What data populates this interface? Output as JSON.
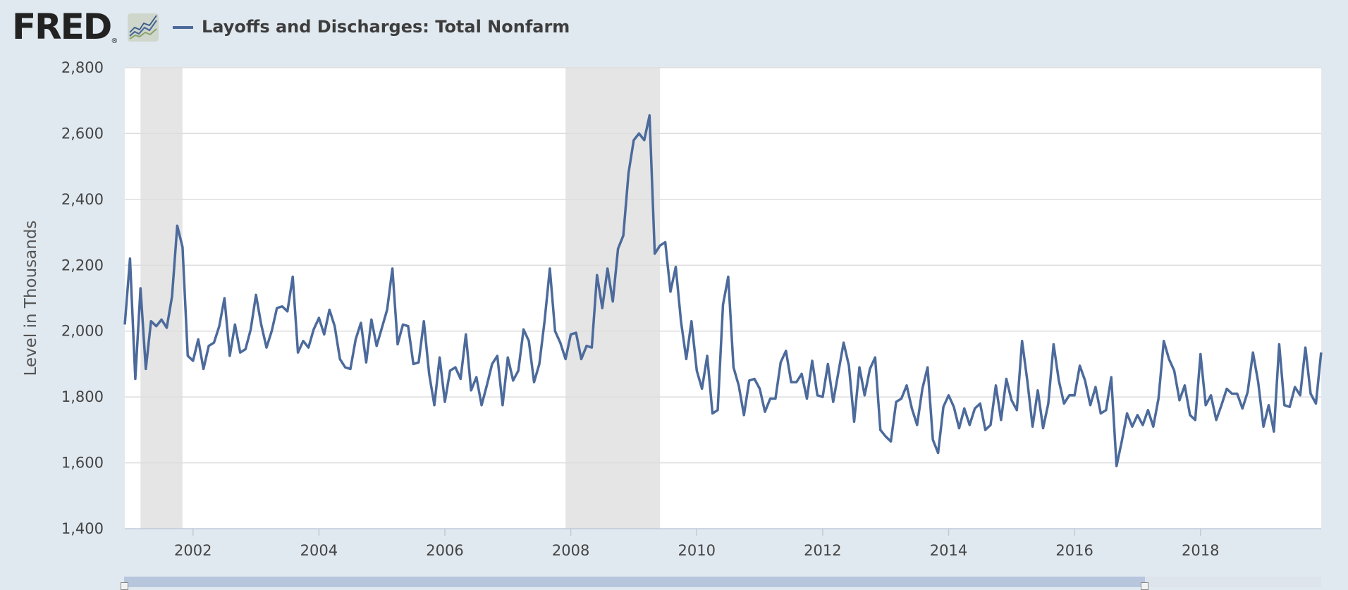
{
  "logo": {
    "text": "FRED",
    "mark": "®",
    "icon": "line-graph-icon"
  },
  "legend": {
    "title": "Layoffs and Discharges: Total Nonfarm",
    "color": "#4c6a9b"
  },
  "colors": {
    "line": "#4c6a9b",
    "plot_bg": "#ffffff",
    "page_bg": "#e1e9f0",
    "recession": "#e5e5e5",
    "grid": "#dddddd",
    "navigator": "#b7c6dd"
  },
  "chart_data": {
    "type": "line",
    "title": "Layoffs and Discharges: Total Nonfarm",
    "xlabel": "",
    "ylabel": "Level in Thousands",
    "xlim": [
      2000.917,
      2019.917
    ],
    "ylim": [
      1400,
      2800
    ],
    "x_ticks": [
      2002,
      2004,
      2006,
      2008,
      2010,
      2012,
      2014,
      2016,
      2018
    ],
    "x_tick_labels": [
      "2002",
      "2004",
      "2006",
      "2008",
      "2010",
      "2012",
      "2014",
      "2016",
      "2018"
    ],
    "y_ticks": [
      1400,
      1600,
      1800,
      2000,
      2200,
      2400,
      2600,
      2800
    ],
    "y_tick_labels": [
      "1,400",
      "1,600",
      "1,800",
      "2,000",
      "2,200",
      "2,400",
      "2,600",
      "2,800"
    ],
    "grid": true,
    "recessions": [
      [
        2001.167,
        2001.833
      ],
      [
        2007.917,
        2009.417
      ]
    ],
    "series": [
      {
        "name": "Layoffs and Discharges: Total Nonfarm",
        "start": 2000.917,
        "step": 0.08333,
        "values": [
          2020,
          2220,
          1855,
          2130,
          1885,
          2030,
          2015,
          2035,
          2010,
          2105,
          2320,
          2255,
          1925,
          1910,
          1975,
          1885,
          1955,
          1965,
          2015,
          2100,
          1925,
          2020,
          1935,
          1945,
          2005,
          2110,
          2020,
          1950,
          2000,
          2070,
          2075,
          2060,
          2165,
          1935,
          1970,
          1950,
          2005,
          2040,
          1990,
          2065,
          2015,
          1915,
          1890,
          1885,
          1975,
          2025,
          1905,
          2035,
          1955,
          2010,
          2065,
          2190,
          1960,
          2020,
          2015,
          1900,
          1905,
          2030,
          1870,
          1775,
          1920,
          1785,
          1880,
          1890,
          1855,
          1990,
          1820,
          1860,
          1775,
          1835,
          1900,
          1925,
          1775,
          1920,
          1850,
          1880,
          2005,
          1970,
          1845,
          1900,
          2030,
          2190,
          2000,
          1965,
          1915,
          1990,
          1995,
          1915,
          1955,
          1950,
          2170,
          2070,
          2190,
          2090,
          2250,
          2290,
          2480,
          2580,
          2600,
          2580,
          2655,
          2235,
          2260,
          2270,
          2120,
          2195,
          2030,
          1915,
          2030,
          1880,
          1825,
          1925,
          1750,
          1760,
          2080,
          2165,
          1890,
          1835,
          1745,
          1850,
          1855,
          1825,
          1755,
          1795,
          1795,
          1905,
          1940,
          1845,
          1845,
          1870,
          1795,
          1910,
          1805,
          1800,
          1900,
          1785,
          1875,
          1965,
          1895,
          1725,
          1890,
          1805,
          1885,
          1920,
          1700,
          1680,
          1665,
          1785,
          1795,
          1835,
          1765,
          1715,
          1825,
          1890,
          1670,
          1630,
          1770,
          1805,
          1770,
          1705,
          1765,
          1715,
          1765,
          1780,
          1700,
          1715,
          1835,
          1730,
          1855,
          1790,
          1760,
          1970,
          1850,
          1710,
          1820,
          1705,
          1780,
          1960,
          1850,
          1780,
          1805,
          1805,
          1895,
          1850,
          1775,
          1830,
          1750,
          1760,
          1860,
          1590,
          1665,
          1750,
          1710,
          1745,
          1715,
          1760,
          1710,
          1795,
          1970,
          1915,
          1880,
          1790,
          1835,
          1745,
          1730,
          1930,
          1775,
          1805,
          1730,
          1775,
          1825,
          1810,
          1810,
          1765,
          1815,
          1935,
          1845,
          1710,
          1775,
          1695,
          1960,
          1775,
          1770,
          1830,
          1805,
          1950,
          1810,
          1780,
          1935
        ]
      }
    ]
  }
}
